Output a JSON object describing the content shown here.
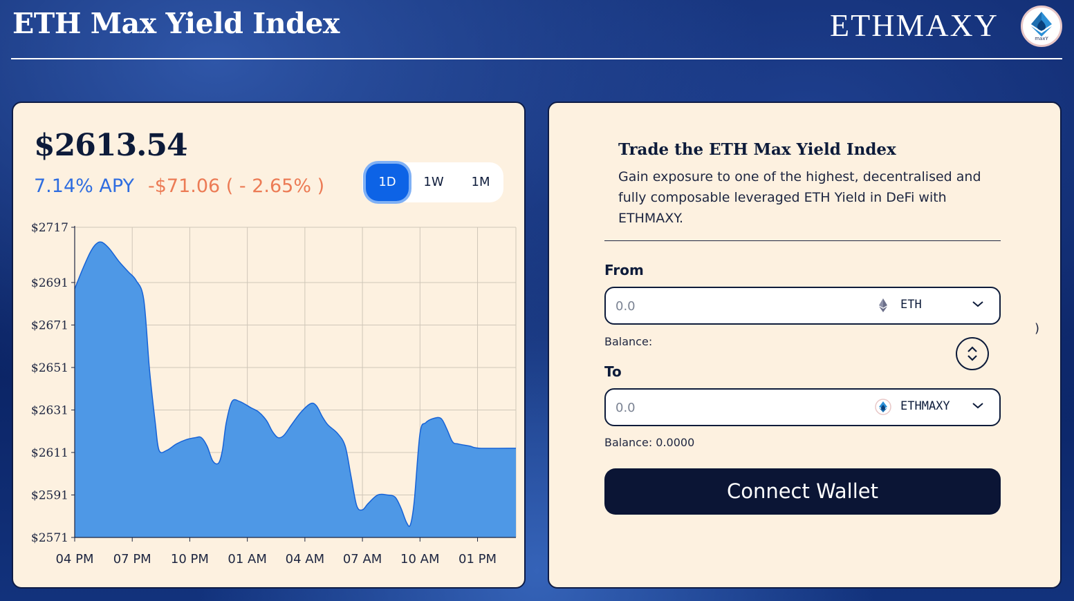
{
  "header": {
    "title": "ETH Max Yield Index",
    "brand": "ETHMAXY",
    "logo_sub": "maxY"
  },
  "chart_panel": {
    "price": "$2613.54",
    "apy": "7.14% APY",
    "change": "-$71.06 ( - 2.65% )",
    "ranges": [
      {
        "label": "1D",
        "active": true
      },
      {
        "label": "1W",
        "active": false
      },
      {
        "label": "1M",
        "active": false
      }
    ]
  },
  "chart_data": {
    "type": "area",
    "x_tick_labels": [
      "04 PM",
      "07 PM",
      "10 PM",
      "01 AM",
      "04 AM",
      "07 AM",
      "10 AM",
      "01 PM"
    ],
    "y_tick_labels": [
      "$2717",
      "$2691",
      "$2671",
      "$2651",
      "$2631",
      "$2611",
      "$2591",
      "$2571"
    ],
    "y_tick_values": [
      2717,
      2691,
      2671,
      2651,
      2631,
      2611,
      2591,
      2571
    ],
    "ylim": [
      2571,
      2717
    ],
    "xlim_hours": [
      0,
      23
    ],
    "grid": true,
    "fill_color": "#4e98e6",
    "line_color": "#1662d6",
    "points": [
      [
        0.0,
        2688
      ],
      [
        0.4,
        2697
      ],
      [
        0.8,
        2705
      ],
      [
        1.1,
        2709
      ],
      [
        1.4,
        2710
      ],
      [
        1.8,
        2707
      ],
      [
        2.3,
        2701
      ],
      [
        2.8,
        2696
      ],
      [
        3.2,
        2692
      ],
      [
        3.6,
        2683
      ],
      [
        3.9,
        2650
      ],
      [
        4.2,
        2625
      ],
      [
        4.4,
        2612
      ],
      [
        4.8,
        2612
      ],
      [
        5.3,
        2615
      ],
      [
        5.8,
        2617
      ],
      [
        6.3,
        2618
      ],
      [
        6.6,
        2618
      ],
      [
        6.9,
        2614
      ],
      [
        7.2,
        2607
      ],
      [
        7.5,
        2606
      ],
      [
        7.7,
        2612
      ],
      [
        7.9,
        2625
      ],
      [
        8.2,
        2635
      ],
      [
        8.6,
        2635
      ],
      [
        9.2,
        2632
      ],
      [
        9.6,
        2630
      ],
      [
        10.0,
        2626
      ],
      [
        10.3,
        2621
      ],
      [
        10.6,
        2618
      ],
      [
        10.9,
        2619
      ],
      [
        11.3,
        2624
      ],
      [
        11.8,
        2630
      ],
      [
        12.3,
        2634
      ],
      [
        12.6,
        2633
      ],
      [
        12.9,
        2628
      ],
      [
        13.2,
        2624
      ],
      [
        13.7,
        2620
      ],
      [
        14.1,
        2614
      ],
      [
        14.4,
        2600
      ],
      [
        14.7,
        2586
      ],
      [
        15.0,
        2584
      ],
      [
        15.3,
        2587
      ],
      [
        15.8,
        2591
      ],
      [
        16.3,
        2591
      ],
      [
        16.7,
        2590
      ],
      [
        17.0,
        2585
      ],
      [
        17.3,
        2578
      ],
      [
        17.5,
        2577
      ],
      [
        17.7,
        2588
      ],
      [
        18.0,
        2620
      ],
      [
        18.3,
        2625
      ],
      [
        18.7,
        2627
      ],
      [
        19.1,
        2627
      ],
      [
        19.4,
        2622
      ],
      [
        19.7,
        2616
      ],
      [
        20.0,
        2615
      ],
      [
        20.6,
        2614
      ],
      [
        21.1,
        2613
      ],
      [
        23.0,
        2613
      ]
    ]
  },
  "trade_panel": {
    "title": "Trade the ETH Max Yield Index",
    "description": "Gain exposure to one of the highest, decentralised and fully composable leveraged ETH Yield in DeFi with ETHMAXY.",
    "from": {
      "label": "From",
      "placeholder": "0.0",
      "token": "ETH",
      "balance": "Balance:"
    },
    "to": {
      "label": "To",
      "placeholder": "0.0",
      "token": "ETHMAXY",
      "balance": "Balance: 0.0000"
    },
    "connect_label": "Connect Wallet",
    "stray_text": ")"
  },
  "icons": {
    "from_token_icon": "ethereum-icon",
    "to_token_icon": "ethmaxy-icon",
    "dropdown": "chevron-down-icon",
    "swap": "swap-arrows-icon"
  },
  "colors": {
    "accent_blue": "#0d63e6",
    "apy_blue": "#2f6de0",
    "negative": "#ec7b55",
    "card_bg": "#fdf1e0",
    "button_dark": "#0b1535"
  }
}
